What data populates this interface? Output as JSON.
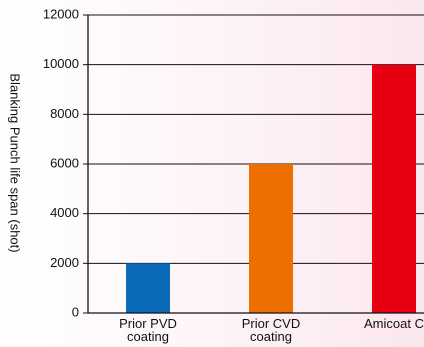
{
  "chart_data": {
    "type": "bar",
    "title": "",
    "xlabel": "",
    "ylabel": "Blanking Punch life span (shot)",
    "ylim": [
      0,
      12000
    ],
    "yticks": [
      0,
      2000,
      4000,
      6000,
      8000,
      10000,
      12000
    ],
    "grid": true,
    "legend": "none",
    "categories": [
      [
        "Prior PVD",
        "coating"
      ],
      [
        "Prior CVD",
        "coating"
      ],
      [
        "Amicoat C"
      ]
    ],
    "values": [
      2000,
      6000,
      10000
    ],
    "colors": [
      "#0a6bb8",
      "#ee6f00",
      "#e60012"
    ]
  }
}
